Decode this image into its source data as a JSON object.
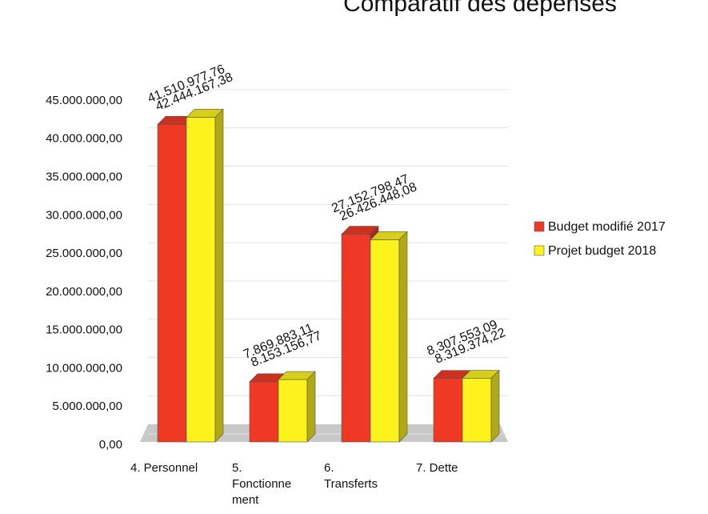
{
  "chart_data": {
    "type": "bar3d",
    "title": "Comparatif des dépenses",
    "categories": [
      "4. Personnel",
      "5. Fonctionnement",
      "6. Transferts",
      "7. Dette"
    ],
    "series": [
      {
        "name": "Budget modifié 2017",
        "color": "#ee3a24",
        "values": [
          41510977.76,
          7869883.11,
          27152798.47,
          8307553.09
        ],
        "value_labels": [
          "41.510.977,76",
          "7.869.883,11",
          "27.152.798,47",
          "8.307.553,09"
        ]
      },
      {
        "name": "Projet budget 2018",
        "color": "#fcf21c",
        "values": [
          42444167.38,
          8153156.77,
          26426448.08,
          8319374.22
        ],
        "value_labels": [
          "42.444.167,38",
          "8.153.156,77",
          "26.426.448,08",
          "8.319.374,22"
        ]
      }
    ],
    "ylim": [
      0,
      45000000
    ],
    "yticks": [
      {
        "value": 0,
        "label": "0,00"
      },
      {
        "value": 5000000,
        "label": "5.000.000,00"
      },
      {
        "value": 10000000,
        "label": "10.000.000,00"
      },
      {
        "value": 15000000,
        "label": "15.000.000,00"
      },
      {
        "value": 20000000,
        "label": "20.000.000,00"
      },
      {
        "value": 25000000,
        "label": "25.000.000,00"
      },
      {
        "value": 30000000,
        "label": "30.000.000,00"
      },
      {
        "value": 35000000,
        "label": "35.000.000,00"
      },
      {
        "value": 40000000,
        "label": "40.000.000,00"
      },
      {
        "value": 45000000,
        "label": "45.000.000,00"
      }
    ],
    "grid": true,
    "legend": "right"
  }
}
